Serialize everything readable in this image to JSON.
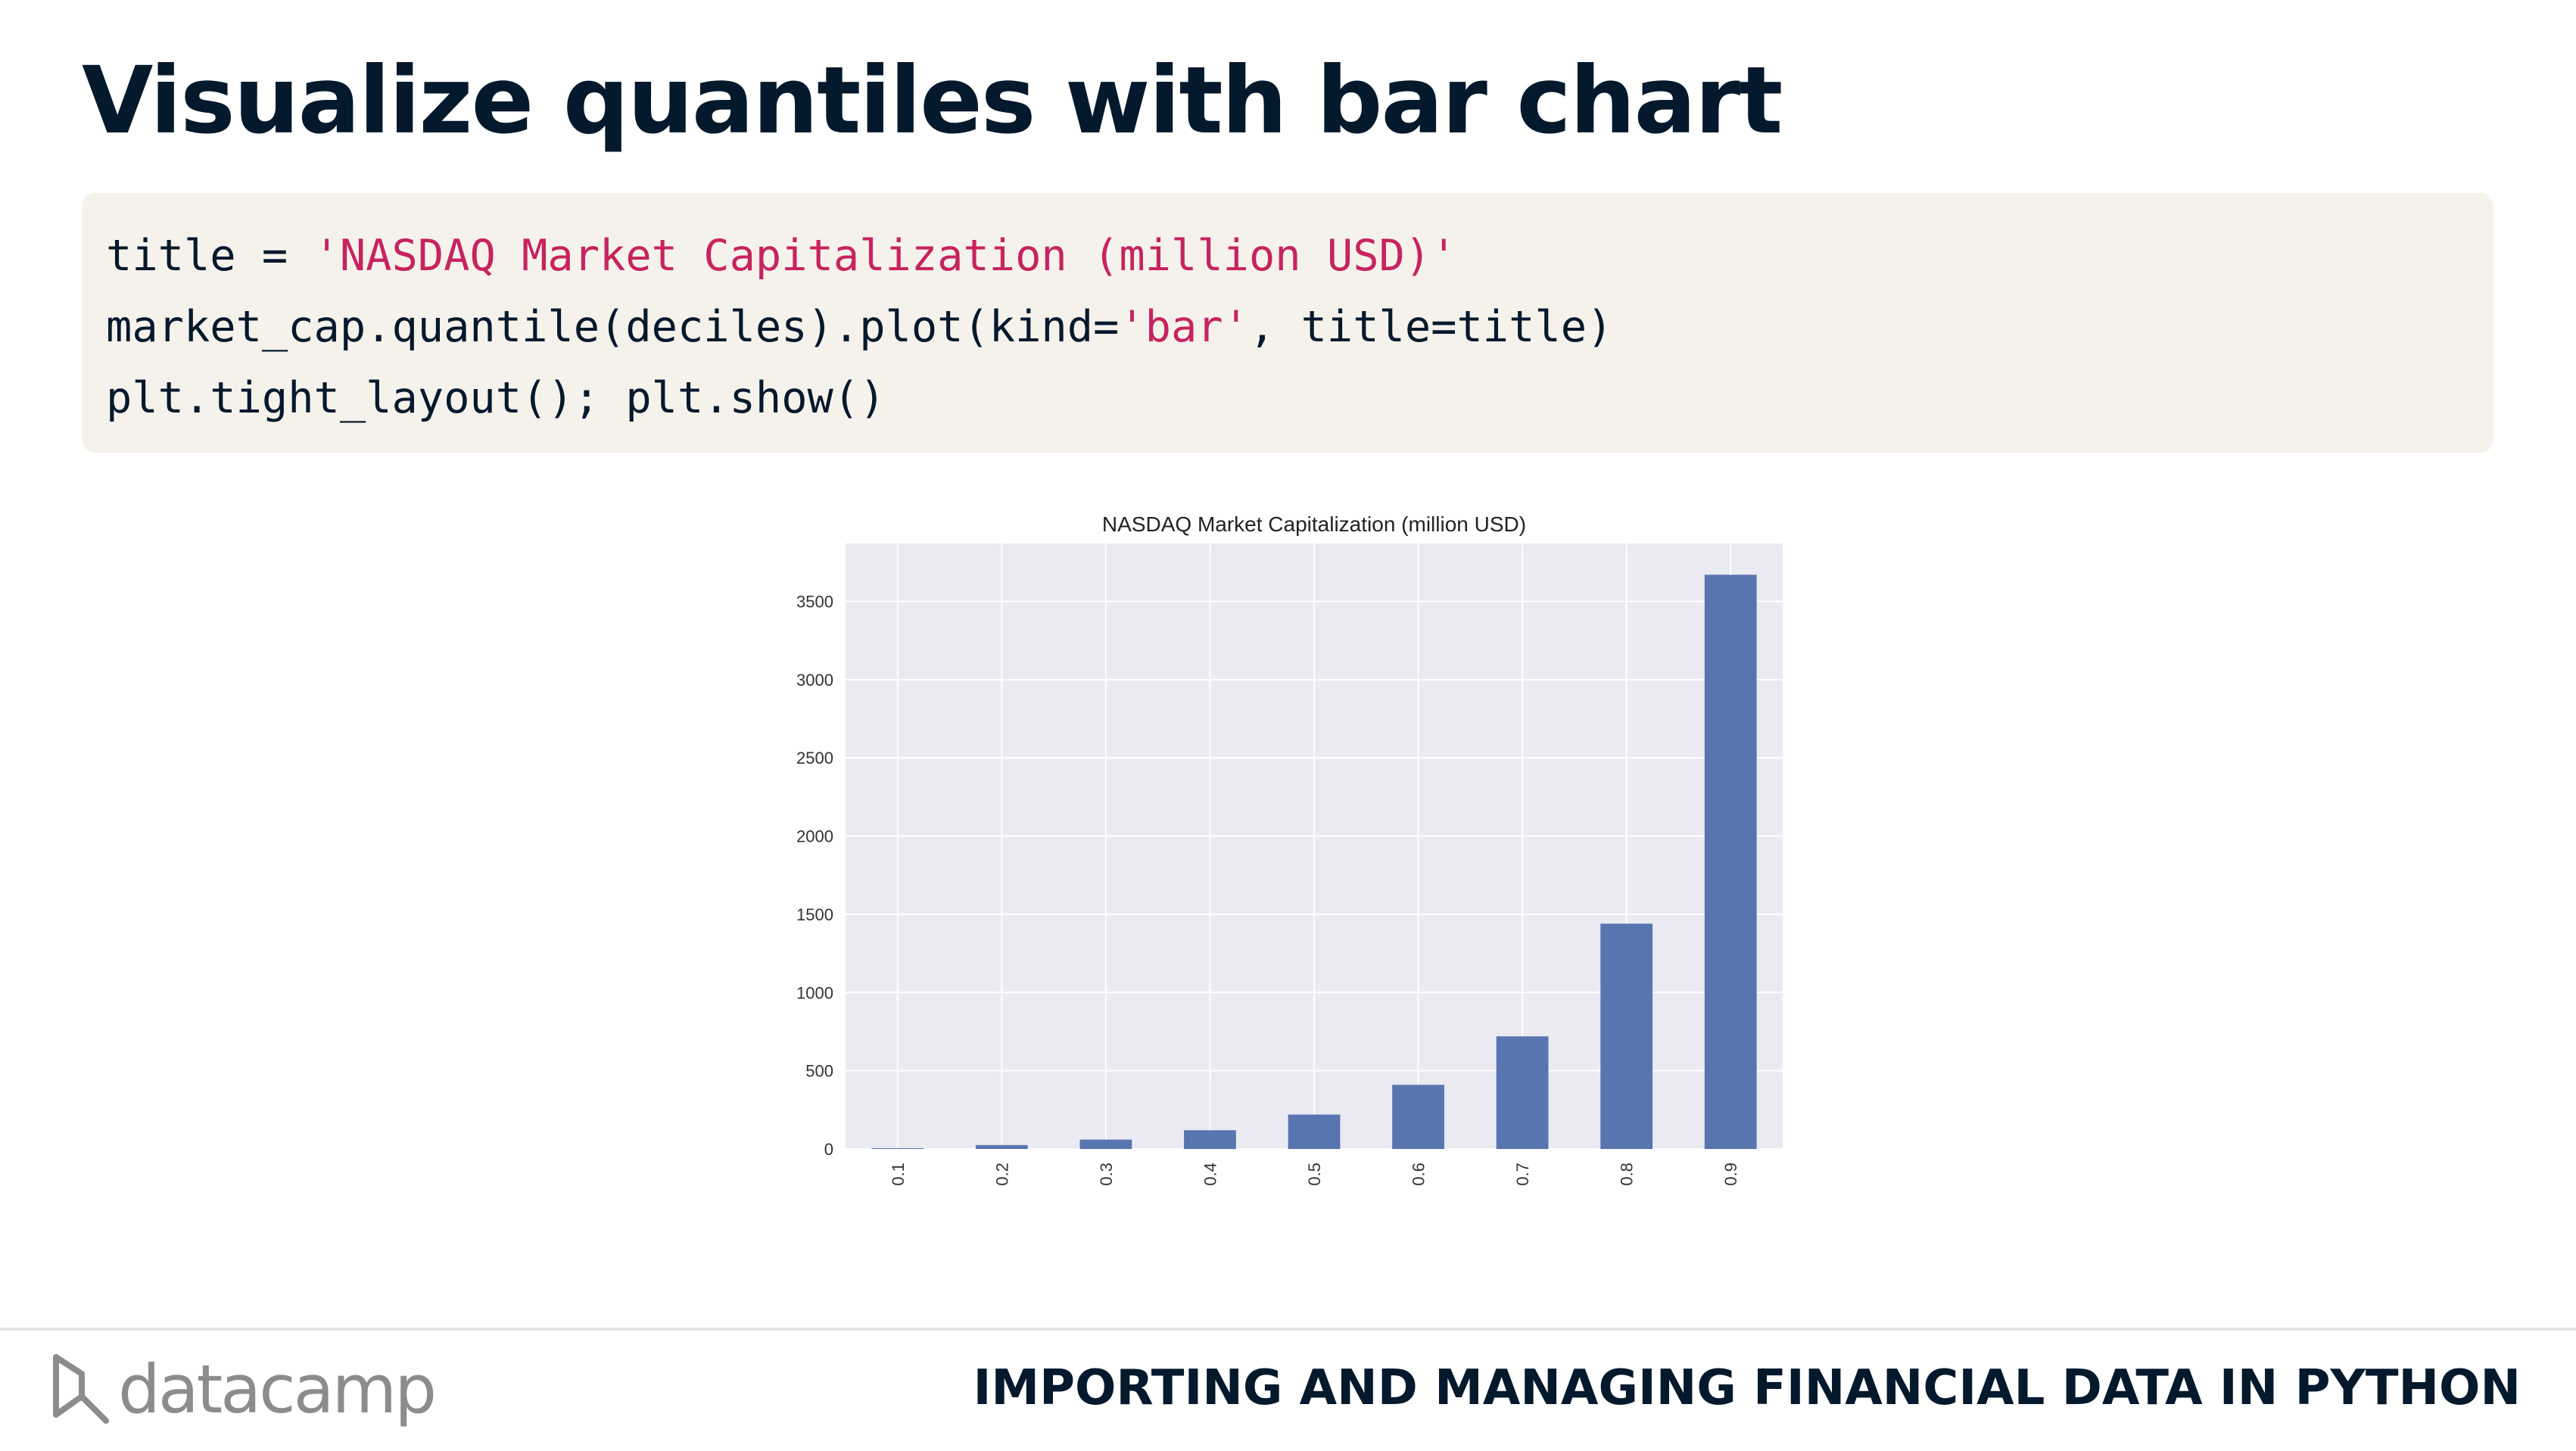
{
  "slide": {
    "title": "Visualize quantiles with bar chart"
  },
  "code": {
    "line1_a": "title = ",
    "line1_str": "'NASDAQ Market Capitalization (million USD)'",
    "line2_a": "market_cap.quantile(deciles).plot(kind=",
    "line2_str": "'bar'",
    "line2_b": ", title=title)",
    "line3": "plt.tight_layout(); plt.show()"
  },
  "chart_data": {
    "type": "bar",
    "title": "NASDAQ Market Capitalization (million USD)",
    "categories": [
      "0.1",
      "0.2",
      "0.3",
      "0.4",
      "0.5",
      "0.6",
      "0.7",
      "0.8",
      "0.9"
    ],
    "values": [
      5,
      25,
      60,
      120,
      220,
      410,
      720,
      1440,
      3670
    ],
    "xlabel": "",
    "ylabel": "",
    "ylim": [
      0,
      3870
    ],
    "yticks": [
      0,
      500,
      1000,
      1500,
      2000,
      2500,
      3000,
      3500
    ],
    "grid": true,
    "bar_color": "#5975af",
    "background_color": "#eaeaf2"
  },
  "footer": {
    "logo_text": "datacamp",
    "course": "IMPORTING AND MANAGING FINANCIAL DATA IN PYTHON"
  },
  "colors": {
    "title": "#05192d",
    "code_bg": "#f5f2ec",
    "string": "#c7235f"
  },
  "icons": {
    "logo": "datacamp-logo-icon"
  }
}
